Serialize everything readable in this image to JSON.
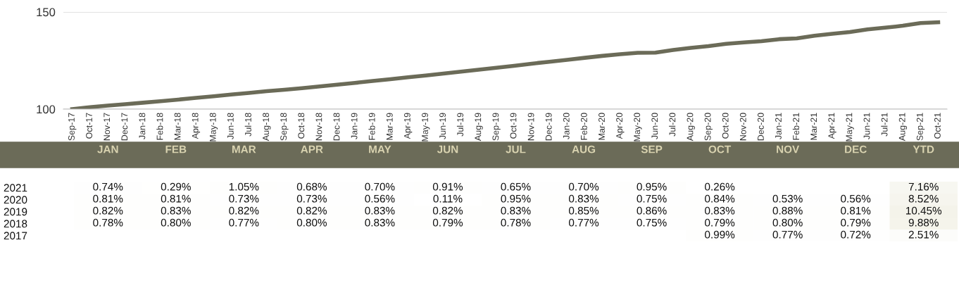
{
  "chart_data": [
    {
      "type": "line",
      "categories": [
        "Sep-17",
        "Oct-17",
        "Nov-17",
        "Dec-17",
        "Jan-18",
        "Feb-18",
        "Mar-18",
        "Apr-18",
        "May-18",
        "Jun-18",
        "Jul-18",
        "Aug-18",
        "Sep-18",
        "Oct-18",
        "Nov-18",
        "Dec-18",
        "Jan-19",
        "Feb-19",
        "Mar-19",
        "Apr-19",
        "May-19",
        "Jun-19",
        "Jul-19",
        "Aug-19",
        "Sep-19",
        "Oct-19",
        "Nov-19",
        "Dec-19",
        "Jan-20",
        "Feb-20",
        "Mar-20",
        "Apr-20",
        "May-20",
        "Jun-20",
        "Jul-20",
        "Aug-20",
        "Sep-20",
        "Oct-20",
        "Nov-20",
        "Dec-20",
        "Jan-21",
        "Feb-21",
        "Mar-21",
        "Apr-21",
        "May-21",
        "Jun-21",
        "Jul-21",
        "Aug-21",
        "Sep-21",
        "Oct-21"
      ],
      "series": [
        {
          "color": "#6b6b58",
          "values": [
            100.0,
            101.0,
            101.8,
            102.5,
            103.3,
            104.1,
            104.9,
            105.8,
            106.6,
            107.5,
            108.3,
            109.2,
            110.0,
            110.8,
            111.7,
            112.6,
            113.5,
            114.5,
            115.4,
            116.4,
            117.3,
            118.3,
            119.3,
            120.3,
            121.3,
            122.3,
            123.4,
            124.4,
            125.4,
            126.4,
            127.4,
            128.3,
            129.0,
            129.1,
            130.4,
            131.5,
            132.4,
            133.6,
            134.3,
            135.0,
            136.0,
            136.4,
            137.8,
            138.8,
            139.7,
            141.0,
            141.9,
            142.9,
            144.3,
            144.7
          ]
        }
      ],
      "ylim": [
        100,
        150
      ],
      "yticks": [
        100,
        150
      ],
      "grid": "y",
      "marker": "none",
      "line_style": "solid"
    },
    {
      "type": "heatmap",
      "categories": [
        "JAN",
        "FEB",
        "MAR",
        "APR",
        "MAY",
        "JUN",
        "JUL",
        "AUG",
        "SEP",
        "OCT",
        "NOV",
        "DEC",
        "YTD"
      ],
      "y_categories": [
        "2021",
        "2020",
        "2019",
        "2018",
        "2017"
      ],
      "cells": [
        [
          0.74,
          0.29,
          1.05,
          0.68,
          0.7,
          0.91,
          0.65,
          0.7,
          0.95,
          0.26,
          null,
          null,
          7.16
        ],
        [
          0.81,
          0.81,
          0.73,
          0.73,
          0.56,
          0.11,
          0.95,
          0.83,
          0.75,
          0.84,
          0.53,
          0.56,
          8.52
        ],
        [
          0.82,
          0.83,
          0.82,
          0.82,
          0.83,
          0.82,
          0.83,
          0.85,
          0.86,
          0.83,
          0.88,
          0.81,
          10.45
        ],
        [
          0.78,
          0.8,
          0.77,
          0.8,
          0.83,
          0.79,
          0.78,
          0.77,
          0.75,
          0.79,
          0.8,
          0.79,
          9.88
        ],
        [
          null,
          null,
          null,
          null,
          null,
          null,
          null,
          null,
          null,
          0.99,
          0.77,
          0.72,
          2.51
        ]
      ],
      "cell_labels": [
        [
          "0.74%",
          "0.29%",
          "1.05%",
          "0.68%",
          "0.70%",
          "0.91%",
          "0.65%",
          "0.70%",
          "0.95%",
          "0.26%",
          null,
          null,
          "7.16%"
        ],
        [
          "0.81%",
          "0.81%",
          "0.73%",
          "0.73%",
          "0.56%",
          "0.11%",
          "0.95%",
          "0.83%",
          "0.75%",
          "0.84%",
          "0.53%",
          "0.56%",
          "8.52%"
        ],
        [
          "0.82%",
          "0.83%",
          "0.82%",
          "0.82%",
          "0.83%",
          "0.82%",
          "0.83%",
          "0.85%",
          "0.86%",
          "0.83%",
          "0.88%",
          "0.81%",
          "10.45%"
        ],
        [
          "0.78%",
          "0.80%",
          "0.77%",
          "0.80%",
          "0.83%",
          "0.79%",
          "0.78%",
          "0.77%",
          "0.75%",
          "0.79%",
          "0.80%",
          "0.79%",
          "9.88%"
        ],
        [
          null,
          null,
          null,
          null,
          null,
          null,
          null,
          null,
          null,
          "0.99%",
          "0.77%",
          "0.72%",
          "2.51%"
        ]
      ]
    }
  ]
}
